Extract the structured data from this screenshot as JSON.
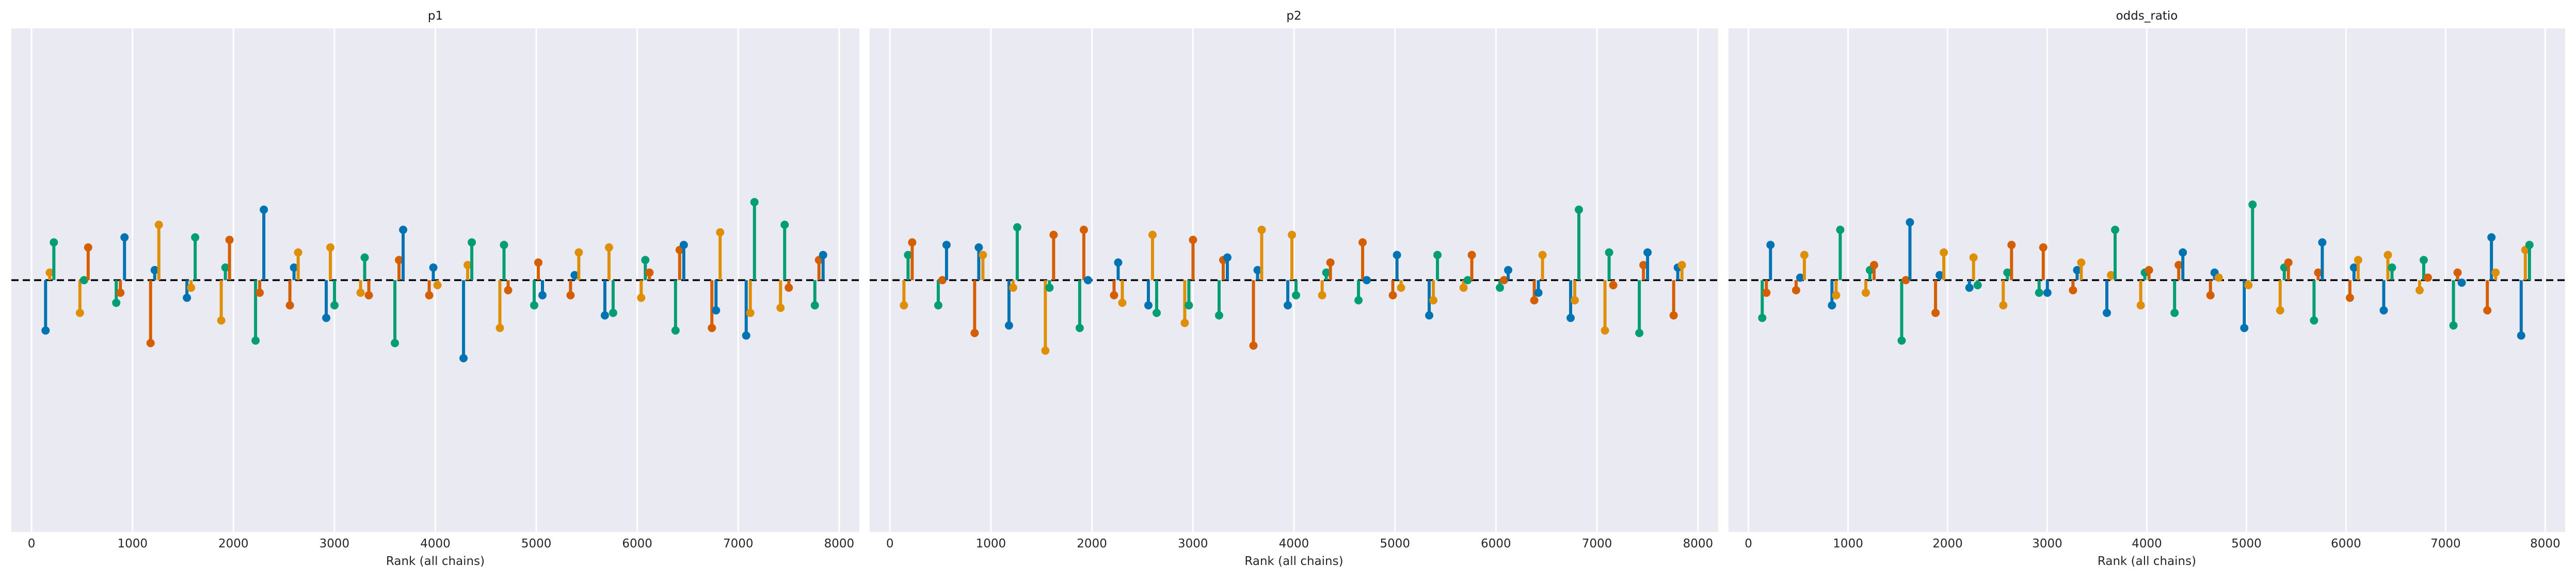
{
  "chart_data": [
    {
      "type": "scatter",
      "title": "p1",
      "xlabel": "Rank (all chains)",
      "ylabel": "",
      "xticks": [
        0,
        1000,
        2000,
        3000,
        4000,
        5000,
        6000,
        7000,
        8000
      ],
      "xlim": [
        -200,
        8200
      ],
      "ylim": [
        -1.0,
        1.0
      ],
      "reference_line_y": 0,
      "grid": "vertical",
      "bins": [
        {
          "x": 180,
          "points": [
            -0.2,
            0.03,
            0.15
          ]
        },
        {
          "x": 520,
          "points": [
            -0.13,
            0.0,
            0.13
          ]
        },
        {
          "x": 880,
          "points": [
            -0.09,
            -0.05,
            0.17
          ]
        },
        {
          "x": 1220,
          "points": [
            -0.25,
            0.04,
            0.22
          ]
        },
        {
          "x": 1580,
          "points": [
            -0.07,
            -0.03,
            0.17
          ]
        },
        {
          "x": 1920,
          "points": [
            -0.16,
            0.05,
            0.16
          ]
        },
        {
          "x": 2260,
          "points": [
            -0.24,
            -0.05,
            0.28
          ]
        },
        {
          "x": 2600,
          "points": [
            -0.1,
            0.05,
            0.11
          ]
        },
        {
          "x": 2960,
          "points": [
            -0.15,
            0.13,
            -0.1
          ]
        },
        {
          "x": 3300,
          "points": [
            -0.05,
            0.09,
            -0.06
          ]
        },
        {
          "x": 3640,
          "points": [
            -0.25,
            0.08,
            0.2
          ]
        },
        {
          "x": 3980,
          "points": [
            -0.06,
            0.05,
            -0.02
          ]
        },
        {
          "x": 4320,
          "points": [
            -0.31,
            0.06,
            0.15
          ]
        },
        {
          "x": 4680,
          "points": [
            -0.19,
            0.14,
            -0.04
          ]
        },
        {
          "x": 5020,
          "points": [
            -0.1,
            0.07,
            -0.06
          ]
        },
        {
          "x": 5380,
          "points": [
            -0.06,
            0.02,
            0.11
          ]
        },
        {
          "x": 5720,
          "points": [
            -0.14,
            0.13,
            -0.13
          ]
        },
        {
          "x": 6080,
          "points": [
            -0.07,
            0.08,
            0.03
          ]
        },
        {
          "x": 6420,
          "points": [
            -0.2,
            0.12,
            0.14
          ]
        },
        {
          "x": 6780,
          "points": [
            -0.19,
            -0.12,
            0.19
          ]
        },
        {
          "x": 7120,
          "points": [
            -0.22,
            -0.13,
            0.31
          ]
        },
        {
          "x": 7460,
          "points": [
            -0.11,
            0.22,
            -0.03
          ]
        },
        {
          "x": 7800,
          "points": [
            -0.1,
            0.08,
            0.1
          ]
        }
      ]
    },
    {
      "type": "scatter",
      "title": "p2",
      "xlabel": "Rank (all chains)",
      "ylabel": "",
      "xticks": [
        0,
        1000,
        2000,
        3000,
        4000,
        5000,
        6000,
        7000,
        8000
      ],
      "xlim": [
        -200,
        8200
      ],
      "ylim": [
        -1.0,
        1.0
      ],
      "reference_line_y": 0,
      "grid": "vertical",
      "bins": [
        {
          "x": 180,
          "points": [
            -0.1,
            0.1,
            0.15
          ]
        },
        {
          "x": 520,
          "points": [
            -0.1,
            0.0,
            0.14
          ]
        },
        {
          "x": 880,
          "points": [
            -0.21,
            0.13,
            0.1
          ]
        },
        {
          "x": 1220,
          "points": [
            -0.18,
            -0.03,
            0.21
          ]
        },
        {
          "x": 1580,
          "points": [
            -0.28,
            -0.03,
            0.18
          ]
        },
        {
          "x": 1920,
          "points": [
            -0.19,
            0.2,
            0.0
          ]
        },
        {
          "x": 2260,
          "points": [
            -0.06,
            0.07,
            -0.09
          ]
        },
        {
          "x": 2600,
          "points": [
            -0.1,
            0.18,
            -0.13
          ]
        },
        {
          "x": 2960,
          "points": [
            -0.17,
            -0.1,
            0.16
          ]
        },
        {
          "x": 3300,
          "points": [
            -0.14,
            0.08,
            0.09
          ]
        },
        {
          "x": 3640,
          "points": [
            -0.26,
            0.04,
            0.2
          ]
        },
        {
          "x": 3980,
          "points": [
            -0.1,
            0.18,
            -0.06
          ]
        },
        {
          "x": 4320,
          "points": [
            -0.06,
            0.03,
            0.07
          ]
        },
        {
          "x": 4680,
          "points": [
            -0.08,
            0.15,
            0.0
          ]
        },
        {
          "x": 5020,
          "points": [
            -0.06,
            0.1,
            -0.03
          ]
        },
        {
          "x": 5380,
          "points": [
            -0.14,
            -0.08,
            0.1
          ]
        },
        {
          "x": 5720,
          "points": [
            -0.03,
            0.0,
            0.1
          ]
        },
        {
          "x": 6080,
          "points": [
            -0.03,
            0.0,
            0.04
          ]
        },
        {
          "x": 6420,
          "points": [
            -0.08,
            -0.05,
            0.1
          ]
        },
        {
          "x": 6780,
          "points": [
            -0.15,
            -0.08,
            0.28
          ]
        },
        {
          "x": 7120,
          "points": [
            -0.2,
            0.11,
            -0.02
          ]
        },
        {
          "x": 7460,
          "points": [
            -0.21,
            0.06,
            0.11
          ]
        },
        {
          "x": 7800,
          "points": [
            -0.14,
            0.05,
            0.06
          ]
        }
      ]
    },
    {
      "type": "scatter",
      "title": "odds_ratio",
      "xlabel": "Rank (all chains)",
      "ylabel": "",
      "xticks": [
        0,
        1000,
        2000,
        3000,
        4000,
        5000,
        6000,
        7000,
        8000
      ],
      "xlim": [
        -200,
        8200
      ],
      "ylim": [
        -1.0,
        1.0
      ],
      "reference_line_y": 0,
      "grid": "vertical",
      "bins": [
        {
          "x": 180,
          "points": [
            -0.15,
            -0.05,
            0.14
          ]
        },
        {
          "x": 520,
          "points": [
            -0.04,
            0.01,
            0.1
          ]
        },
        {
          "x": 880,
          "points": [
            -0.1,
            -0.06,
            0.2
          ]
        },
        {
          "x": 1220,
          "points": [
            -0.05,
            0.04,
            0.06
          ]
        },
        {
          "x": 1580,
          "points": [
            -0.24,
            0.0,
            0.23
          ]
        },
        {
          "x": 1920,
          "points": [
            -0.13,
            0.02,
            0.11
          ]
        },
        {
          "x": 2260,
          "points": [
            -0.03,
            0.09,
            -0.02
          ]
        },
        {
          "x": 2600,
          "points": [
            -0.1,
            0.03,
            0.14
          ]
        },
        {
          "x": 2960,
          "points": [
            -0.05,
            0.13,
            -0.05
          ]
        },
        {
          "x": 3300,
          "points": [
            -0.04,
            0.04,
            0.07
          ]
        },
        {
          "x": 3640,
          "points": [
            -0.13,
            0.02,
            0.2
          ]
        },
        {
          "x": 3980,
          "points": [
            -0.1,
            0.03,
            0.04
          ]
        },
        {
          "x": 4320,
          "points": [
            -0.13,
            0.06,
            0.11
          ]
        },
        {
          "x": 4680,
          "points": [
            -0.06,
            0.03,
            0.01
          ]
        },
        {
          "x": 5020,
          "points": [
            -0.19,
            -0.02,
            0.3
          ]
        },
        {
          "x": 5380,
          "points": [
            -0.12,
            0.05,
            0.07
          ]
        },
        {
          "x": 5720,
          "points": [
            -0.16,
            0.03,
            0.15
          ]
        },
        {
          "x": 6080,
          "points": [
            -0.07,
            0.05,
            0.08
          ]
        },
        {
          "x": 6420,
          "points": [
            -0.12,
            0.1,
            0.05
          ]
        },
        {
          "x": 6780,
          "points": [
            -0.04,
            0.08,
            0.01
          ]
        },
        {
          "x": 7120,
          "points": [
            -0.18,
            0.03,
            -0.01
          ]
        },
        {
          "x": 7460,
          "points": [
            -0.12,
            0.17,
            0.03
          ]
        },
        {
          "x": 7800,
          "points": [
            -0.22,
            0.12,
            0.14
          ]
        }
      ]
    }
  ],
  "colors": {
    "chain_1": "#0173b2",
    "chain_2": "#de8f05",
    "chain_3": "#029e73",
    "chain_4": "#d55e00",
    "panel_background": "#eaeaf2",
    "grid": "#ffffff",
    "reference_line": "#000000"
  }
}
